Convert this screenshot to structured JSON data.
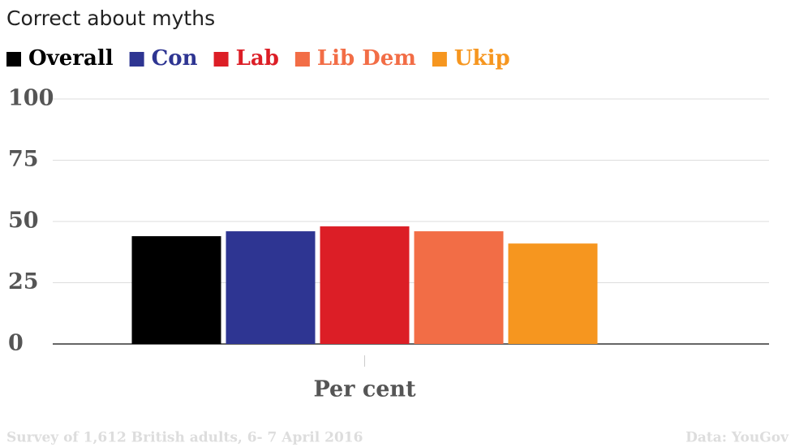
{
  "chart_data": {
    "type": "bar",
    "title": "Correct about myths",
    "categories": [
      "Per cent"
    ],
    "series": [
      {
        "name": "Overall",
        "color": "#000000",
        "values": [
          44
        ]
      },
      {
        "name": "Con",
        "color": "#2e3592",
        "values": [
          46
        ]
      },
      {
        "name": "Lab",
        "color": "#dc1e26",
        "values": [
          48
        ]
      },
      {
        "name": "Lib Dem",
        "color": "#f26d46",
        "values": [
          46
        ]
      },
      {
        "name": "Ukip",
        "color": "#f6961f",
        "values": [
          41
        ]
      }
    ],
    "ylim": [
      0,
      100
    ],
    "yticks": [
      0,
      25,
      50,
      75,
      100
    ],
    "grid": true,
    "footnote": "Survey of 1,612 British adults, 6- 7 April 2016",
    "source": "Data: YouGov"
  }
}
